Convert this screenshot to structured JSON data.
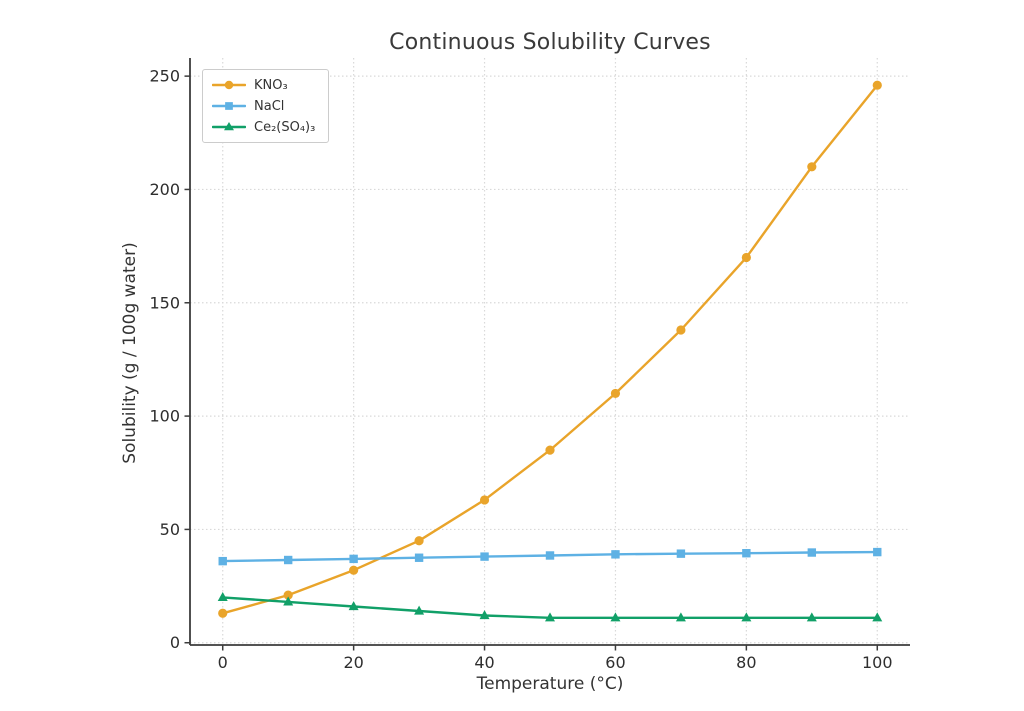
{
  "chart_data": {
    "type": "line",
    "title": "Continuous Solubility Curves",
    "xlabel": "Temperature (°C)",
    "ylabel": "Solubility (g / 100g water)",
    "x": [
      0,
      10,
      20,
      30,
      40,
      50,
      60,
      70,
      80,
      90,
      100
    ],
    "x_ticks": [
      0,
      20,
      40,
      60,
      80,
      100
    ],
    "y_ticks": [
      0,
      50,
      100,
      150,
      200,
      250
    ],
    "xlim": [
      -5,
      105
    ],
    "ylim": [
      -1,
      258
    ],
    "grid": true,
    "legend_position": "upper-left",
    "series": [
      {
        "name": "KNO₃",
        "marker": "circle",
        "color": "#E9A42A",
        "values": [
          13,
          21,
          32,
          45,
          63,
          85,
          110,
          138,
          170,
          210,
          246
        ]
      },
      {
        "name": "NaCl",
        "marker": "square",
        "color": "#5EB1E4",
        "values": [
          36,
          36.5,
          37,
          37.5,
          38,
          38.5,
          39,
          39.3,
          39.5,
          39.8,
          40
        ]
      },
      {
        "name": "Ce₂(SO₄)₃",
        "marker": "triangle",
        "color": "#11A068",
        "values": [
          20,
          18,
          16,
          14,
          12,
          11,
          11,
          11,
          11,
          11,
          11
        ]
      }
    ],
    "style": {
      "grid_color": "#d9d9d9",
      "spine_color": "#3c3c3c",
      "tick_text_color": "#2e2e2e",
      "title_color": "#3a3a3a",
      "legend_border_color": "#cccccc",
      "background": "#ffffff"
    }
  }
}
